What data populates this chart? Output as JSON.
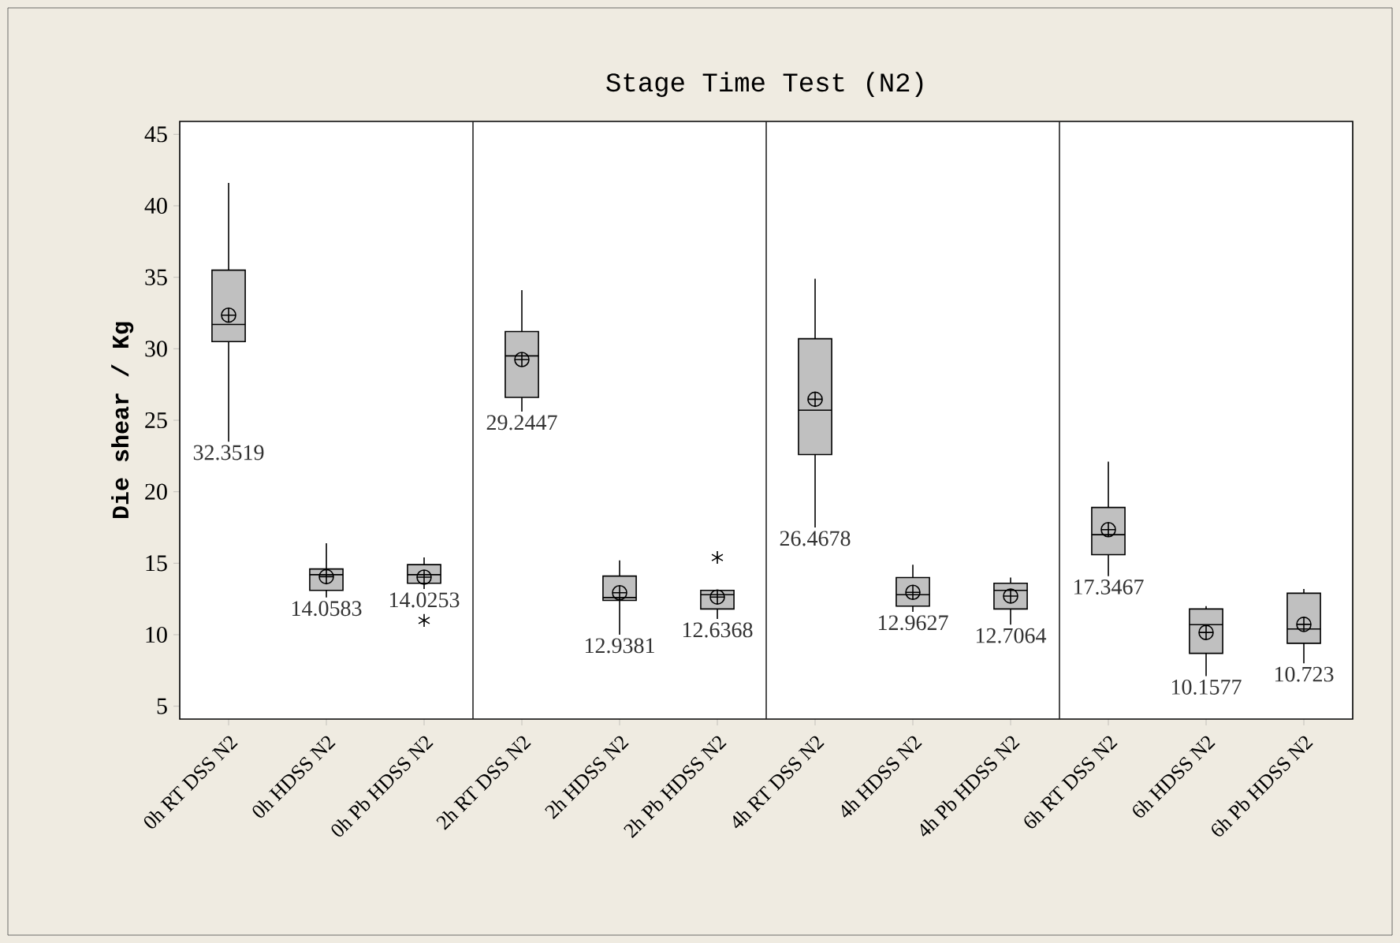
{
  "chart_data": {
    "type": "box",
    "title": "Stage Time Test (N2)",
    "ylabel": "Die shear / Kg",
    "categories": [
      "0h RT DSS N2",
      "0h HDSS N2",
      "0h Pb HDSS N2",
      "2h RT DSS N2",
      "2h HDSS N2",
      "2h Pb HDSS N2",
      "4h RT DSS N2",
      "4h HDSS N2",
      "4h Pb HDSS N2",
      "6h RT DSS N2",
      "6h HDSS N2",
      "6h Pb HDSS N2"
    ],
    "color": "#c0c0c0",
    "boxes": [
      {
        "low": 23.5,
        "q1": 30.5,
        "median": 31.7,
        "q3": 35.5,
        "high": 41.6,
        "mean": 32.3519
      },
      {
        "low": 12.6,
        "q1": 13.1,
        "median": 14.2,
        "q3": 14.6,
        "high": 16.4,
        "mean": 14.0583
      },
      {
        "low": 13.2,
        "q1": 13.6,
        "median": 14.2,
        "q3": 14.9,
        "high": 15.4,
        "mean": 14.0253,
        "outliers": [
          11.0
        ]
      },
      {
        "low": 25.6,
        "q1": 26.6,
        "median": 29.5,
        "q3": 31.2,
        "high": 34.1,
        "mean": 29.2447
      },
      {
        "low": 10.0,
        "q1": 12.4,
        "median": 12.6,
        "q3": 14.1,
        "high": 15.2,
        "mean": 12.9381
      },
      {
        "low": 11.1,
        "q1": 11.8,
        "median": 12.8,
        "q3": 13.1,
        "high": 13.1,
        "mean": 12.6368,
        "outliers": [
          15.4
        ]
      },
      {
        "low": 17.5,
        "q1": 22.6,
        "median": 25.7,
        "q3": 30.7,
        "high": 34.9,
        "mean": 26.4678
      },
      {
        "low": 11.6,
        "q1": 12.0,
        "median": 12.8,
        "q3": 14.0,
        "high": 14.9,
        "mean": 12.9627
      },
      {
        "low": 10.7,
        "q1": 11.8,
        "median": 13.1,
        "q3": 13.6,
        "high": 14.0,
        "mean": 12.7064
      },
      {
        "low": 14.1,
        "q1": 15.6,
        "median": 17.0,
        "q3": 18.9,
        "high": 22.1,
        "mean": 17.3467
      },
      {
        "low": 7.1,
        "q1": 8.7,
        "median": 10.7,
        "q3": 11.8,
        "high": 12.0,
        "mean": 10.1577
      },
      {
        "low": 8.0,
        "q1": 9.4,
        "median": 10.4,
        "q3": 12.9,
        "high": 13.2,
        "mean": 10.723
      }
    ],
    "value_labels": [
      "32.3519",
      "14.0583",
      "14.0253",
      "29.2447",
      "12.9381",
      "12.6368",
      "26.4678",
      "12.9627",
      "12.7064",
      "17.3467",
      "10.1577",
      "10.723"
    ],
    "ylim": [
      4.1,
      45.9
    ],
    "yticks": [
      5,
      10,
      15,
      20,
      25,
      30,
      35,
      40,
      45
    ],
    "grid": false
  }
}
